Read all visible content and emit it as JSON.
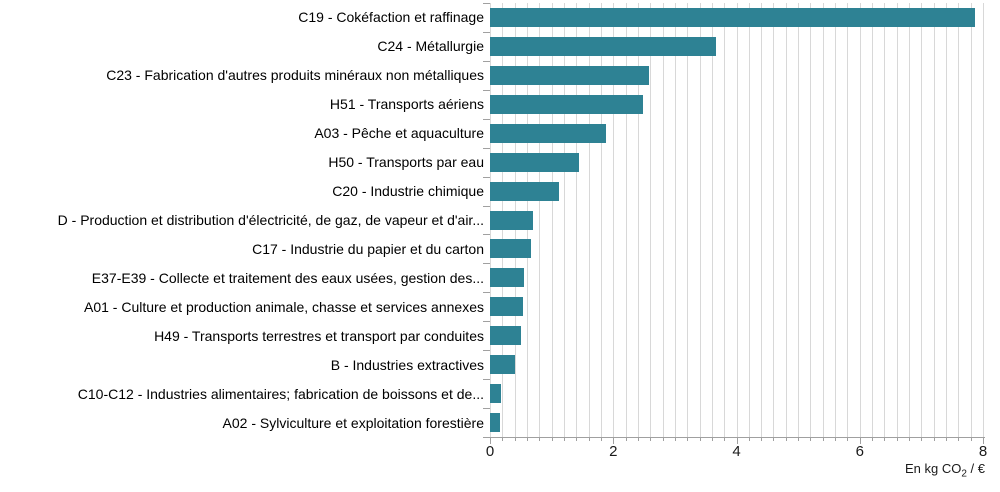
{
  "chart_data": {
    "type": "bar",
    "orientation": "horizontal",
    "title": "",
    "xlabel": "En kg CO2 / €",
    "xlabel_parts": {
      "prefix": "En kg CO",
      "sub": "2",
      "suffix": " / €"
    },
    "categories": [
      "C19 - Cokéfaction et raffinage",
      "C24 - Métallurgie",
      "C23 - Fabrication d'autres produits minéraux non métalliques",
      "H51 - Transports aériens",
      "A03 - Pêche et aquaculture",
      "H50 - Transports par eau",
      "C20 - Industrie chimique",
      "D - Production et distribution d'électricité, de gaz, de vapeur et d'air...",
      "C17 - Industrie du papier et du carton",
      "E37-E39 - Collecte et traitement des eaux usées, gestion des...",
      "A01 - Culture et production animale, chasse et services annexes",
      "H49 - Transports terrestres et transport par conduites",
      "B - Industries extractives",
      "C10-C12 - Industries alimentaires; fabrication de boissons et de...",
      "A02 - Sylviculture et exploitation forestière"
    ],
    "values": [
      7.87,
      3.66,
      2.58,
      2.48,
      1.88,
      1.44,
      1.12,
      0.7,
      0.66,
      0.55,
      0.53,
      0.5,
      0.4,
      0.18,
      0.17
    ],
    "xlim": [
      0,
      8
    ],
    "x_ticks": [
      "0",
      "2",
      "4",
      "6",
      "8"
    ],
    "x_tick_values": [
      0,
      2,
      4,
      6,
      8
    ],
    "minor_grid_step": 0.2,
    "grid": true,
    "legend": false,
    "colors": {
      "bar": "#2E8294",
      "gridline": "#D8D8D8",
      "axis": "#A0A0A0",
      "text": "#000000"
    }
  }
}
